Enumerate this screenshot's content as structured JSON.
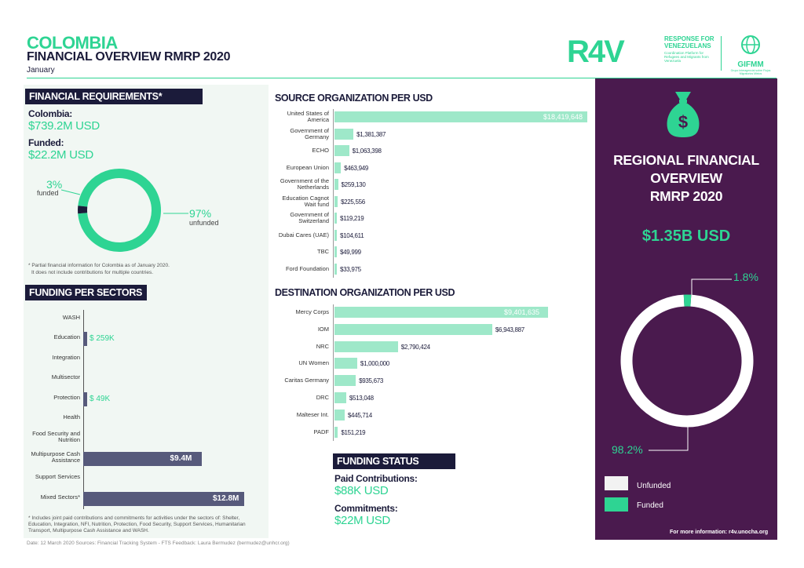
{
  "header": {
    "title": "COLOMBIA",
    "subtitle": "FINANCIAL OVERVIEW RMRP 2020",
    "month": "January"
  },
  "logo": {
    "brand": "R4V",
    "line1": "RESPONSE FOR",
    "line2": "VENEZUELANS",
    "tagline": "Coordination Platform for Refugees and Migrants from Venezuela",
    "gifmm": "GIFMM",
    "gifmm_tagline": "Grupo Interagencial sobre Flujos Migratorios Mixtos"
  },
  "requirements": {
    "header": "FINANCIAL REQUIREMENTS*",
    "country_label": "Colombia:",
    "country_value": "$739.2M USD",
    "funded_label": "Funded:",
    "funded_value": "$22.2M USD",
    "funded_pct": "3%",
    "funded_word": "funded",
    "unfunded_pct": "97%",
    "unfunded_word": "unfunded",
    "note_line1": "* Partial financial information for Colombia as of January 2020.",
    "note_line2": "It does not include contributions for multiple countries.",
    "donut": {
      "funded": 3,
      "unfunded": 97
    },
    "colors": {
      "funded": "#1b1b3a",
      "unfunded": "#2ed493"
    }
  },
  "sectors": {
    "header": "FUNDING PER SECTORS",
    "max": 12.8,
    "items": [
      {
        "label": "WASH",
        "value": 0,
        "display": "",
        "inside": false
      },
      {
        "label": "Education",
        "value": 0.259,
        "display": "$ 259K",
        "inside": false
      },
      {
        "label": "Integration",
        "value": 0,
        "display": "",
        "inside": false
      },
      {
        "label": "Multisector",
        "value": 0,
        "display": "",
        "inside": false
      },
      {
        "label": "Protection",
        "value": 0.049,
        "display": "$ 49K",
        "inside": false
      },
      {
        "label": "Health",
        "value": 0,
        "display": "",
        "inside": false
      },
      {
        "label": "Food Security and Nutrition",
        "value": 0,
        "display": "",
        "inside": false
      },
      {
        "label": "Multipurpose Cash Assistance",
        "value": 9.4,
        "display": "$9.4M",
        "inside": true
      },
      {
        "label": "Support Services",
        "value": 0,
        "display": "",
        "inside": false
      },
      {
        "label": "Mixed Sectors*",
        "value": 12.8,
        "display": "$12.8M",
        "inside": true
      }
    ],
    "note_line1": "* Includes joint paid contributions and commitments for activities under the sectors of: Shelter,",
    "note_line2": "Education, Integration, NFI, Nutrition, Protection, Food Security, Support Services, Humanitarian",
    "note_line3": "Transport, Multipurpose Cash Assistance and WASH."
  },
  "source_orgs": {
    "header": "SOURCE ORGANIZATION PER USD",
    "max": 18419648,
    "items": [
      {
        "label": "United States of America",
        "value": 18419648,
        "display": "$18,419,648"
      },
      {
        "label": "Government of Germany",
        "value": 1381387,
        "display": "$1,381,387"
      },
      {
        "label": "ECHO",
        "value": 1063398,
        "display": "$1,063,398"
      },
      {
        "label": "European Union",
        "value": 463949,
        "display": "$463,949"
      },
      {
        "label": "Government of the Netherlands",
        "value": 259130,
        "display": "$259,130"
      },
      {
        "label": "Education Cagnot Wait fund",
        "value": 225556,
        "display": "$225,556"
      },
      {
        "label": "Government of Switzerland",
        "value": 119219,
        "display": "$119,219"
      },
      {
        "label": "Dubai Cares (UAE)",
        "value": 104611,
        "display": "$104,611"
      },
      {
        "label": "TBC",
        "value": 49999,
        "display": "$49,999"
      },
      {
        "label": "Ford Foundation",
        "value": 33975,
        "display": "$33,975"
      }
    ]
  },
  "dest_orgs": {
    "header": "DESTINATION ORGANIZATION PER USD",
    "max": 9401635,
    "items": [
      {
        "label": "Mercy Corps",
        "value": 9401635,
        "display": "$9,401,635"
      },
      {
        "label": "IOM",
        "value": 6943887,
        "display": "$6,943,887"
      },
      {
        "label": "NRC",
        "value": 2790424,
        "display": "$2,790,424"
      },
      {
        "label": "UN Women",
        "value": 1000000,
        "display": "$1,000,000"
      },
      {
        "label": "Caritas Germany",
        "value": 935673,
        "display": "$935,673"
      },
      {
        "label": "DRC",
        "value": 513048,
        "display": "$513,048"
      },
      {
        "label": "Malteser Int.",
        "value": 445714,
        "display": "$445,714"
      },
      {
        "label": "PADF",
        "value": 151219,
        "display": "$151,219"
      }
    ]
  },
  "funding_status": {
    "header": "FUNDING STATUS",
    "paid_label": "Paid Contributions:",
    "paid_value": "$88K USD",
    "commit_label": "Commitments:",
    "commit_value": "$22M USD"
  },
  "regional": {
    "title_line1": "REGIONAL FINANCIAL",
    "title_line2": "OVERVIEW",
    "title_line3": "RMRP 2020",
    "amount": "$1.35B USD",
    "funded_pct": "1.8%",
    "unfunded_pct": "98.2%",
    "donut": {
      "funded": 1.8,
      "unfunded": 98.2
    },
    "legend_unfunded": "Unfunded",
    "legend_funded": "Funded",
    "more_info": "For more information: r4v.unocha.org",
    "colors": {
      "funded": "#2ed493",
      "unfunded": "#ffffff",
      "background": "#4a1a4e"
    }
  },
  "footer": "Date: 12 March 2020   Sources: Financial Tracking System - FTS   Feedback: Laura Bermudez (bermudez@unhcr.org)"
}
